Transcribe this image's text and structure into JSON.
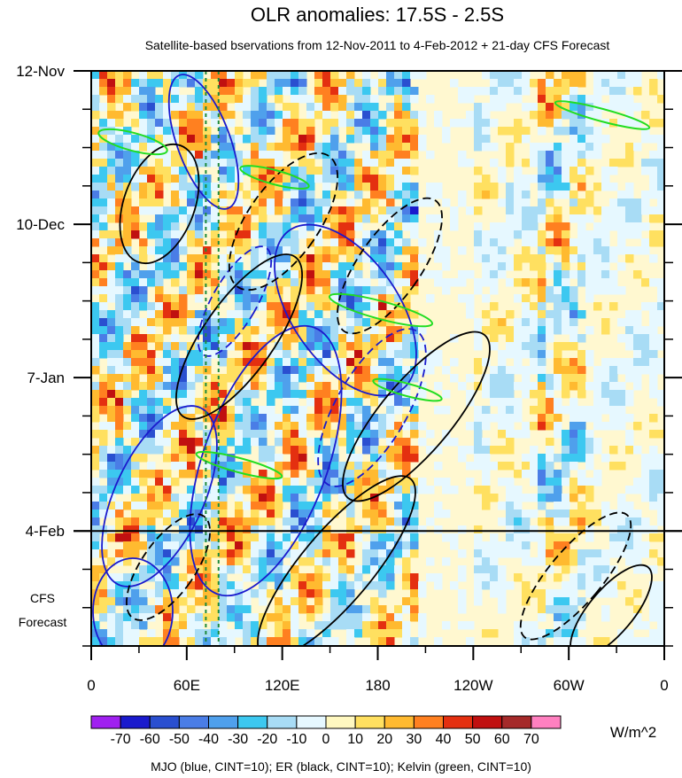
{
  "chart_data": {
    "type": "heatmap",
    "title": "OLR anomalies: 17.5S - 2.5S",
    "subtitle": "Satellite-based bservations from 12-Nov-2011 to 4-Feb-2012 + 21-day CFS Forecast",
    "x_ticks": [
      "0",
      "60E",
      "120E",
      "180",
      "120W",
      "60W",
      "0"
    ],
    "x_range": [
      0,
      360
    ],
    "y_ticks": [
      "12-Nov",
      "10-Dec",
      "7-Jan",
      "4-Feb"
    ],
    "y_range_days": [
      0,
      105
    ],
    "y_tick_days": [
      0,
      28,
      56,
      84
    ],
    "forecast_label": [
      "CFS",
      "Forecast"
    ],
    "forecast_start_day": 84,
    "reference_lines_lon": [
      72,
      80
    ],
    "colorbar": {
      "labels": [
        "-70",
        "-60",
        "-50",
        "-40",
        "-30",
        "-20",
        "-10",
        "0",
        "10",
        "20",
        "30",
        "40",
        "50",
        "60",
        "70"
      ],
      "colors": [
        "#a020f0",
        "#1a1acd",
        "#2a4fd0",
        "#4a7de6",
        "#4fa0ec",
        "#3cc8f0",
        "#a8dcf5",
        "#e6f8ff",
        "#fff8c0",
        "#ffe060",
        "#ffba30",
        "#ff8020",
        "#e43010",
        "#c01010",
        "#a52a2a",
        "#ff80c0"
      ],
      "unit": "W/m^2"
    },
    "footer": "MJO (blue, CINT=10); ER (black, CINT=10); Kelvin (green, CINT=10)",
    "contour_colors": {
      "mjo": "#1a1acd",
      "er": "#000000",
      "kelvin": "#22dd22"
    }
  }
}
